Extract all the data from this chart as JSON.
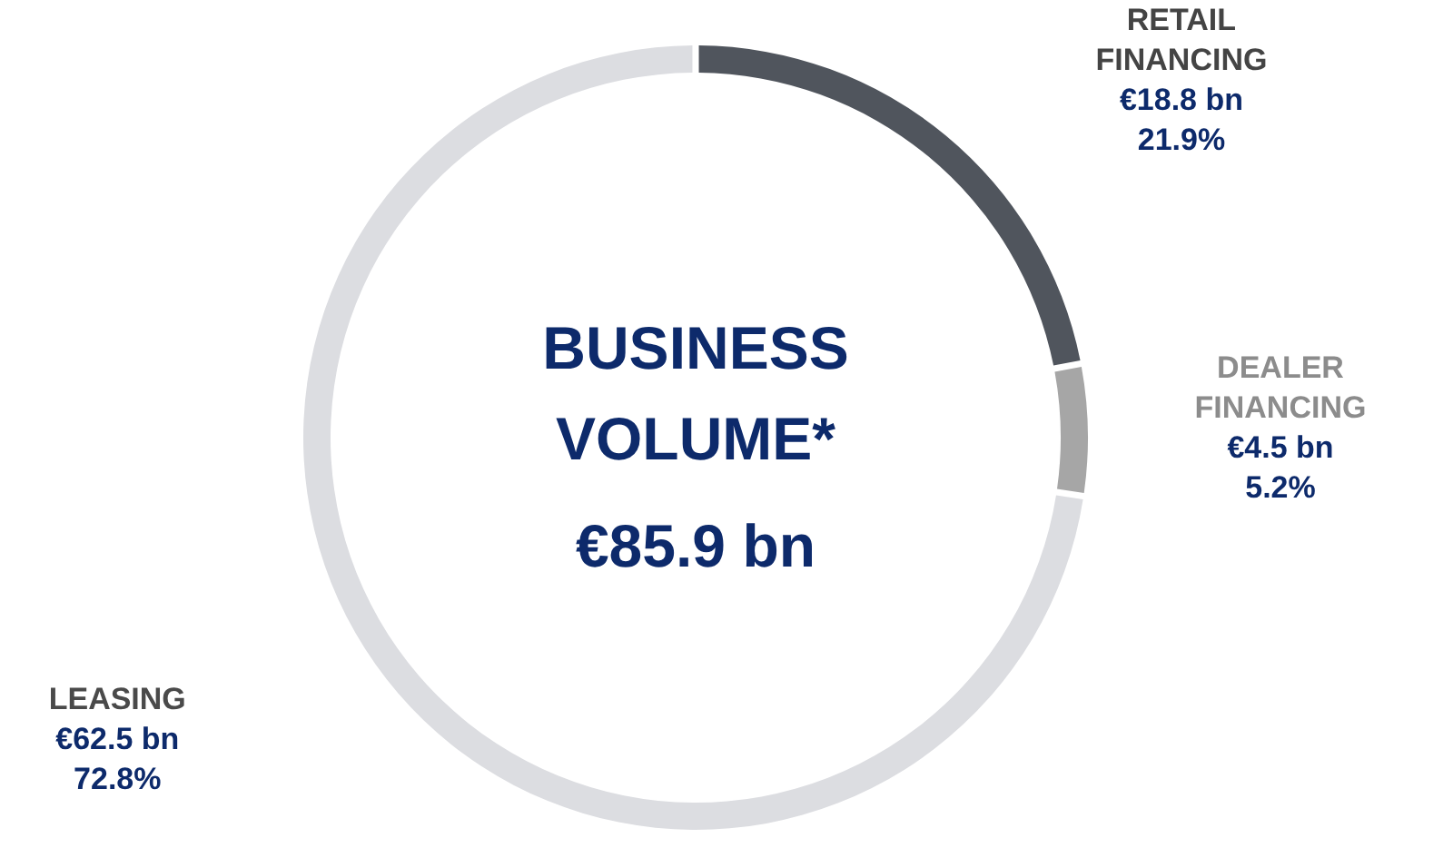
{
  "chart_data": {
    "type": "donut",
    "title": "BUSINESS VOLUME*",
    "subtitle": "€85.9 bn",
    "categories": [
      "RETAIL FINANCING",
      "DEALER FINANCING",
      "LEASING"
    ],
    "values": [
      18.8,
      4.5,
      62.5
    ],
    "colors": [
      "#50555d",
      "#a6a6a6",
      "#dcdde1"
    ],
    "value_labels": [
      "€18.8 bn",
      "€4.5 bn",
      "€62.5 bn"
    ],
    "annotations": [
      "21.9%",
      "5.2%",
      "72.8%"
    ],
    "legend": false
  }
}
